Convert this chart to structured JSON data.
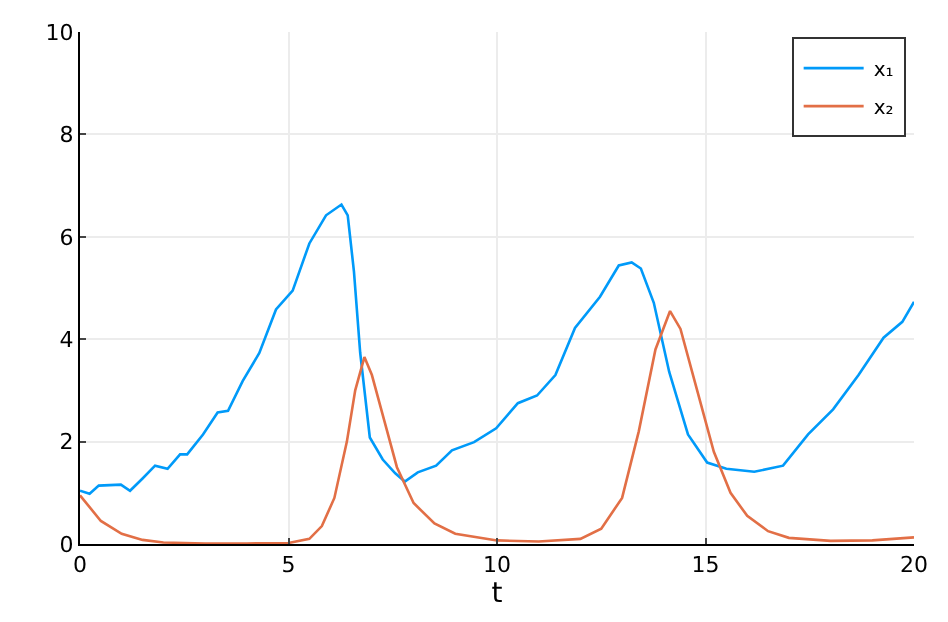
{
  "chart_data": {
    "type": "line",
    "xlabel": "t",
    "xlim": [
      0,
      20
    ],
    "xticks": [
      0,
      5,
      10,
      15,
      20
    ],
    "ylim": [
      0,
      10
    ],
    "yticks": [
      0,
      2,
      4,
      6,
      8,
      10
    ],
    "grid": true,
    "legend": "top right",
    "line_style": "solid",
    "marker": "none",
    "series": [
      {
        "name": "x₁",
        "color": "#009af9",
        "x": [
          0,
          0.23,
          0.45,
          0.98,
          1.2,
          1.5,
          1.8,
          2.1,
          2.4,
          2.57,
          2.95,
          3.3,
          3.55,
          3.9,
          4.3,
          4.7,
          5.1,
          5.5,
          5.9,
          6.27,
          6.42,
          6.57,
          6.72,
          6.95,
          7.26,
          7.56,
          7.79,
          8.1,
          8.54,
          8.92,
          9.45,
          9.98,
          10.5,
          10.96,
          11.4,
          11.87,
          12.47,
          12.92,
          13.23,
          13.45,
          13.76,
          14.13,
          14.58,
          15.04,
          15.5,
          16.17,
          16.86,
          17.46,
          18.06,
          18.67,
          19.27,
          19.72,
          20
        ],
        "values": [
          1.04,
          0.98,
          1.14,
          1.16,
          1.04,
          1.28,
          1.53,
          1.47,
          1.75,
          1.75,
          2.14,
          2.57,
          2.6,
          3.18,
          3.73,
          4.58,
          4.95,
          5.87,
          6.42,
          6.63,
          6.42,
          5.32,
          3.73,
          2.08,
          1.65,
          1.38,
          1.22,
          1.4,
          1.53,
          1.83,
          1.99,
          2.26,
          2.75,
          2.9,
          3.3,
          4.22,
          4.83,
          5.44,
          5.5,
          5.38,
          4.71,
          3.36,
          2.14,
          1.59,
          1.47,
          1.41,
          1.53,
          2.14,
          2.63,
          3.3,
          4.03,
          4.34,
          4.73
        ]
      },
      {
        "name": "x₂",
        "color": "#e26f46",
        "x": [
          0,
          0.5,
          1,
          1.5,
          2,
          3,
          4,
          5,
          5.5,
          5.8,
          6.1,
          6.4,
          6.6,
          6.82,
          7,
          7.3,
          7.6,
          8,
          8.5,
          9,
          10,
          11,
          12,
          12.5,
          13,
          13.4,
          13.8,
          14.15,
          14.4,
          14.8,
          15.2,
          15.6,
          16,
          16.5,
          17,
          18,
          19,
          20
        ],
        "values": [
          0.95,
          0.45,
          0.2,
          0.08,
          0.03,
          0.01,
          0.01,
          0.02,
          0.1,
          0.35,
          0.9,
          2.0,
          3.0,
          3.65,
          3.3,
          2.4,
          1.5,
          0.8,
          0.4,
          0.2,
          0.07,
          0.05,
          0.1,
          0.3,
          0.9,
          2.2,
          3.8,
          4.55,
          4.2,
          3.0,
          1.8,
          1.0,
          0.55,
          0.25,
          0.12,
          0.06,
          0.07,
          0.13
        ]
      }
    ]
  }
}
